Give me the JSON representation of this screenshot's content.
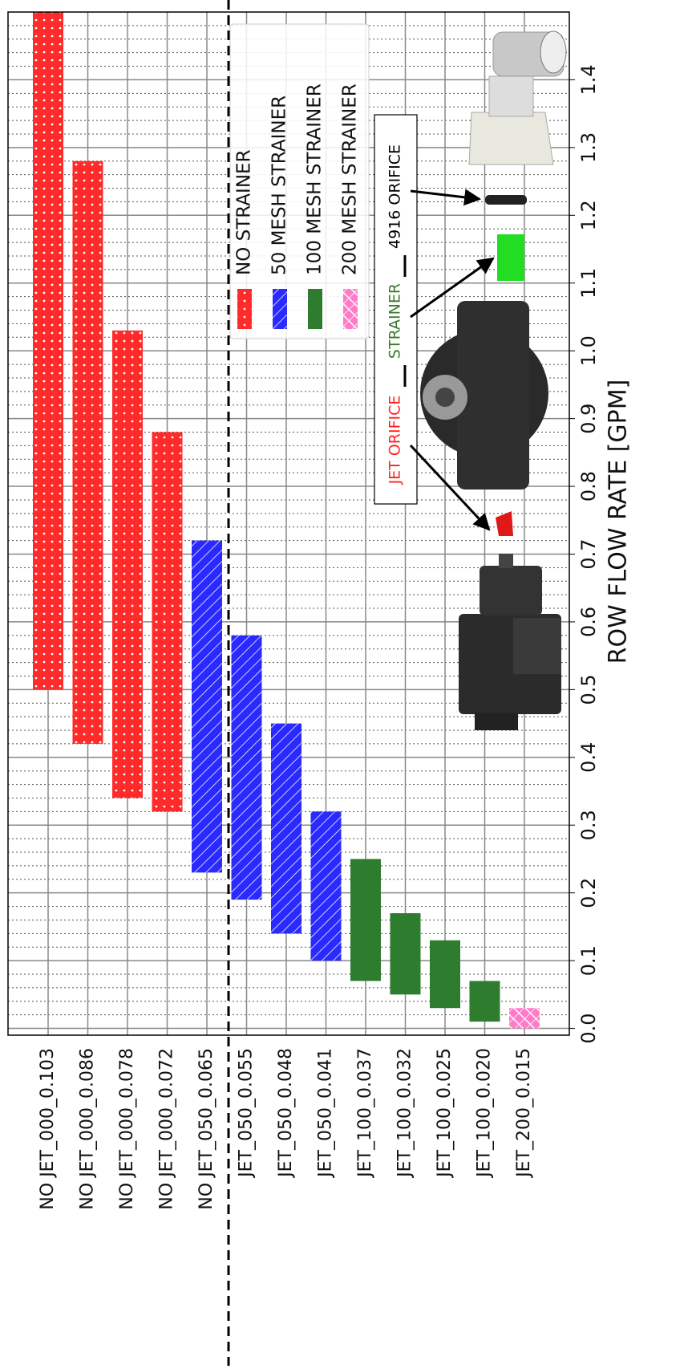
{
  "chart_data": {
    "type": "range-bar",
    "y_label": "ROW FLOW RATE [GPM]",
    "categories": [
      "NO JET_000_0.103",
      "NO JET_000_0.086",
      "NO JET_000_0.078",
      "NO JET_000_0.072",
      "NO JET_050_0.065",
      "JET_050_0.055",
      "JET_050_0.048",
      "JET_050_0.041",
      "JET_100_0.037",
      "JET_100_0.032",
      "JET_100_0.025",
      "JET_100_0.020",
      "JET_200_0.015"
    ],
    "series": [
      {
        "name": "NO STRAINER",
        "color": "#ff2a2a",
        "pattern": "dots",
        "low": [
          0.5,
          0.42,
          0.34,
          0.32,
          null,
          null,
          null,
          null,
          null,
          null,
          null,
          null,
          null
        ],
        "high": [
          1.5,
          1.28,
          1.03,
          0.88,
          null,
          null,
          null,
          null,
          null,
          null,
          null,
          null,
          null
        ]
      },
      {
        "name": "50 MESH STRAINER",
        "color": "#2a2aff",
        "pattern": "hatch",
        "low": [
          null,
          null,
          null,
          null,
          0.23,
          0.19,
          0.14,
          0.1,
          null,
          null,
          null,
          null,
          null
        ],
        "high": [
          null,
          null,
          null,
          null,
          0.72,
          0.58,
          0.45,
          0.32,
          null,
          null,
          null,
          null,
          null
        ]
      },
      {
        "name": "100 MESH STRAINER",
        "color": "#2e7d2e",
        "pattern": "solid",
        "low": [
          null,
          null,
          null,
          null,
          null,
          null,
          null,
          null,
          0.07,
          0.05,
          0.03,
          0.01,
          null
        ],
        "high": [
          null,
          null,
          null,
          null,
          null,
          null,
          null,
          null,
          0.25,
          0.17,
          0.13,
          0.07,
          null
        ]
      },
      {
        "name": "200 MESH STRAINER",
        "color": "#ff7ac8",
        "pattern": "cross",
        "low": [
          null,
          null,
          null,
          null,
          null,
          null,
          null,
          null,
          null,
          null,
          null,
          null,
          0.0
        ],
        "high": [
          null,
          null,
          null,
          null,
          null,
          null,
          null,
          null,
          null,
          null,
          null,
          null,
          0.03
        ]
      }
    ],
    "ylim": [
      -0.01,
      1.5
    ],
    "yticks": [
      {
        "value": 0,
        "label": "0.0"
      },
      0.1,
      0.2,
      0.3,
      0.4,
      0.5,
      0.6,
      0.7,
      0.8,
      0.9,
      {
        "value": 1,
        "label": "1.0"
      },
      1.1,
      1.2,
      1.3,
      1.4
    ],
    "grid": true,
    "minor_grid": true,
    "annotations": [
      {
        "text": "JET ORIFICE",
        "color": "#ff2020"
      },
      {
        "text": "STRAINER",
        "color": "#3a7a2a"
      },
      {
        "text": "4916 ORIFICE",
        "color": "#000000"
      }
    ]
  }
}
